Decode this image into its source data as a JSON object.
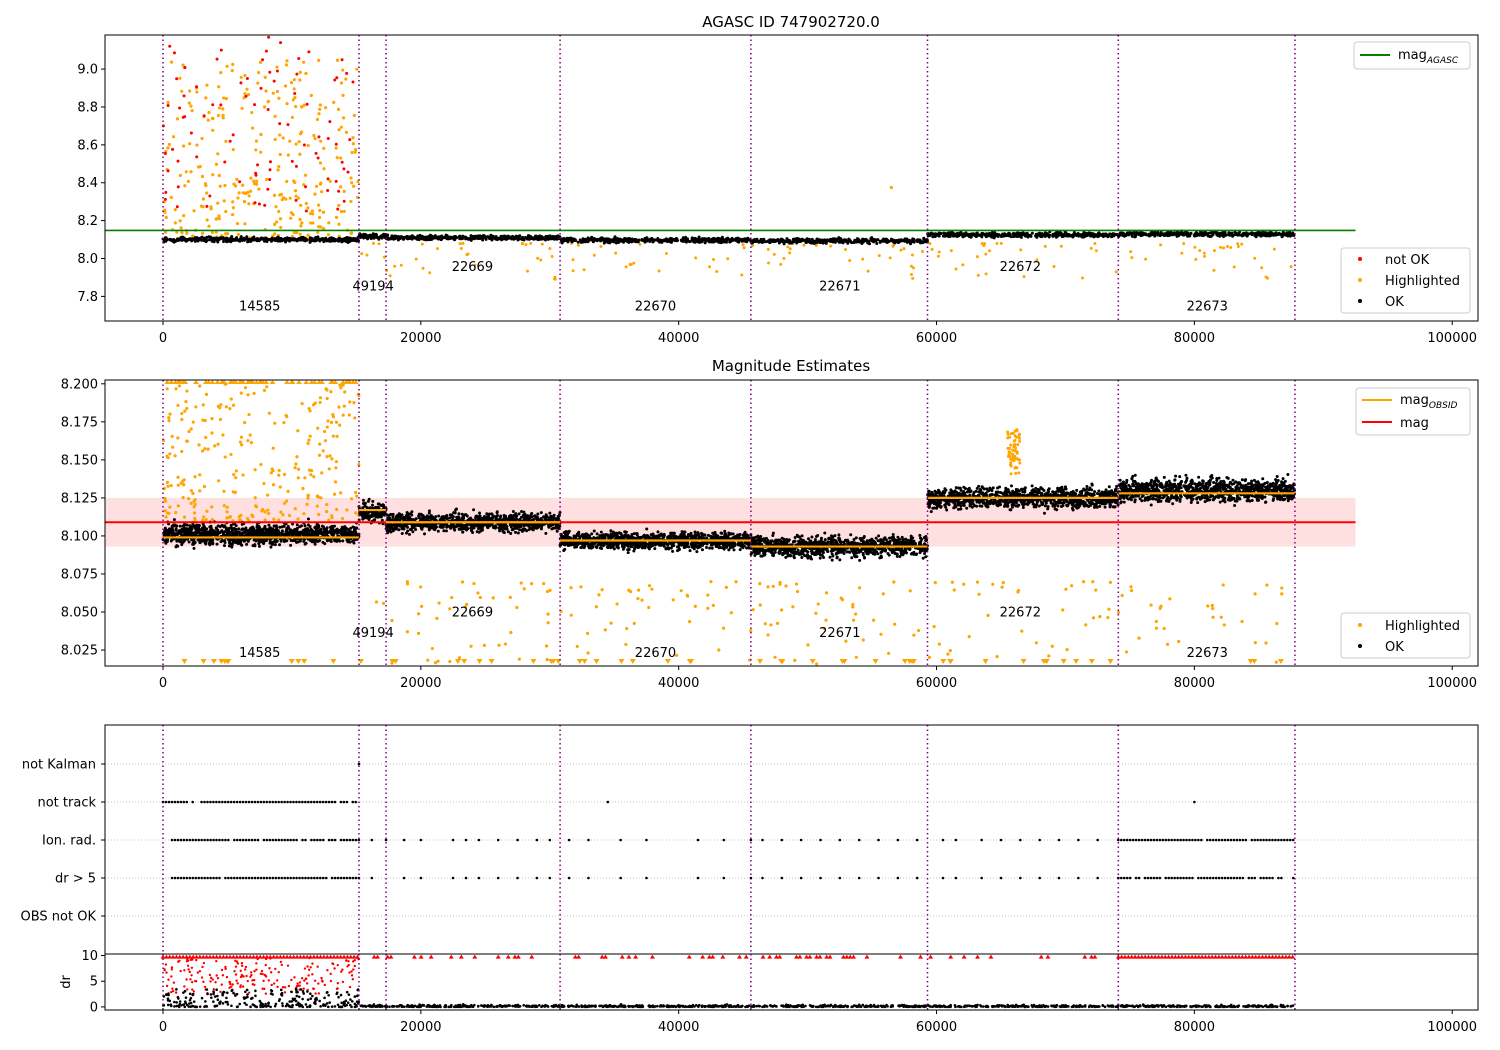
{
  "chart_data": [
    {
      "type": "scatter",
      "title": "AGASC ID 747902720.0",
      "xlabel": "",
      "ylabel": "",
      "xlim": [
        -4500,
        102000
      ],
      "ylim": [
        7.67,
        9.18
      ],
      "xticks": [
        0,
        20000,
        40000,
        60000,
        80000,
        100000
      ],
      "xtick_labels": [
        "0",
        "20000",
        "40000",
        "60000",
        "80000",
        "100000"
      ],
      "yticks": [
        7.8,
        8.0,
        8.2,
        8.4,
        8.6,
        8.8,
        9.0
      ],
      "ytick_labels": [
        "7.8",
        "8.0",
        "8.2",
        "8.4",
        "8.6",
        "8.8",
        "9.0"
      ],
      "obsid_boundaries": [
        0,
        15200,
        17300,
        30800,
        45600,
        59300,
        74100,
        87800
      ],
      "obsid_labels": [
        {
          "x": 7500,
          "y": 7.725,
          "text": "14585"
        },
        {
          "x": 16300,
          "y": 7.83,
          "text": "49194"
        },
        {
          "x": 24000,
          "y": 7.935,
          "text": "22669"
        },
        {
          "x": 38200,
          "y": 7.725,
          "text": "22670"
        },
        {
          "x": 52500,
          "y": 7.83,
          "text": "22671"
        },
        {
          "x": 66500,
          "y": 7.935,
          "text": "22672"
        },
        {
          "x": 81000,
          "y": 7.725,
          "text": "22673"
        }
      ],
      "reference_lines": [
        {
          "name": "mag_AGASC",
          "y": 8.148,
          "x_range": [
            -4500,
            92500
          ],
          "color": "#008000"
        }
      ],
      "ok_segments": [
        {
          "x": [
            0,
            15200
          ],
          "center": 8.1,
          "spread": 0.02
        },
        {
          "x": [
            15200,
            17300
          ],
          "center": 8.116,
          "spread": 0.02
        },
        {
          "x": [
            17300,
            30800
          ],
          "center": 8.11,
          "spread": 0.02
        },
        {
          "x": [
            30800,
            45600
          ],
          "center": 8.097,
          "spread": 0.02
        },
        {
          "x": [
            45600,
            59300
          ],
          "center": 8.093,
          "spread": 0.02
        },
        {
          "x": [
            59300,
            74100
          ],
          "center": 8.125,
          "spread": 0.02
        },
        {
          "x": [
            74100,
            87800
          ],
          "center": 8.128,
          "spread": 0.02
        }
      ],
      "legends": [
        {
          "position": "upper right",
          "entries": [
            {
              "label": "mag",
              "sub": "AGASC",
              "marker": "line",
              "color": "#008000"
            }
          ]
        },
        {
          "position": "lower right",
          "entries": [
            {
              "label": "not OK",
              "marker": "dot",
              "color": "#ff0000"
            },
            {
              "label": "Highlighted",
              "marker": "dot",
              "color": "#ffa500"
            },
            {
              "label": "OK",
              "marker": "dot",
              "color": "#000000"
            }
          ]
        }
      ]
    },
    {
      "type": "scatter",
      "title": "Magnitude Estimates",
      "xlabel": "",
      "ylabel": "",
      "xlim": [
        -4500,
        102000
      ],
      "ylim": [
        8.0145,
        8.2025
      ],
      "xticks": [
        0,
        20000,
        40000,
        60000,
        80000,
        100000
      ],
      "xtick_labels": [
        "0",
        "20000",
        "40000",
        "60000",
        "80000",
        "100000"
      ],
      "yticks": [
        8.025,
        8.05,
        8.075,
        8.1,
        8.125,
        8.15,
        8.175,
        8.2
      ],
      "ytick_labels": [
        "8.025",
        "8.050",
        "8.075",
        "8.100",
        "8.125",
        "8.150",
        "8.175",
        "8.200"
      ],
      "obsid_boundaries": [
        0,
        15200,
        17300,
        30800,
        45600,
        59300,
        74100,
        87800
      ],
      "obsid_labels": [
        {
          "x": 7500,
          "y": 8.0205,
          "text": "14585"
        },
        {
          "x": 16300,
          "y": 8.0335,
          "text": "49194"
        },
        {
          "x": 24000,
          "y": 8.047,
          "text": "22669"
        },
        {
          "x": 38200,
          "y": 8.0205,
          "text": "22670"
        },
        {
          "x": 52500,
          "y": 8.0335,
          "text": "22671"
        },
        {
          "x": 66500,
          "y": 8.047,
          "text": "22672"
        },
        {
          "x": 81000,
          "y": 8.0205,
          "text": "22673"
        }
      ],
      "mag": {
        "value": 8.109,
        "band": [
          8.093,
          8.125
        ],
        "x_range": [
          -4500,
          92500
        ],
        "color": "#ff0000"
      },
      "mag_obsid": [
        {
          "x": [
            0,
            15200
          ],
          "y": 8.099
        },
        {
          "x": [
            15200,
            17300
          ],
          "y": 8.117
        },
        {
          "x": [
            17300,
            30800
          ],
          "y": 8.109
        },
        {
          "x": [
            30800,
            45600
          ],
          "y": 8.097
        },
        {
          "x": [
            45600,
            59300
          ],
          "y": 8.093
        },
        {
          "x": [
            59300,
            74100
          ],
          "y": 8.125
        },
        {
          "x": [
            74100,
            87800
          ],
          "y": 8.128
        }
      ],
      "ok_segments": [
        {
          "x": [
            0,
            15200
          ],
          "center": 8.101,
          "spread": 0.012
        },
        {
          "x": [
            15200,
            17300
          ],
          "center": 8.116,
          "spread": 0.012
        },
        {
          "x": [
            17300,
            30800
          ],
          "center": 8.109,
          "spread": 0.011
        },
        {
          "x": [
            30800,
            45600
          ],
          "center": 8.097,
          "spread": 0.01
        },
        {
          "x": [
            45600,
            59300
          ],
          "center": 8.093,
          "spread": 0.012
        },
        {
          "x": [
            59300,
            74100
          ],
          "center": 8.125,
          "spread": 0.012
        },
        {
          "x": [
            74100,
            87800
          ],
          "center": 8.13,
          "spread": 0.013
        }
      ],
      "legends": [
        {
          "position": "upper right",
          "entries": [
            {
              "label": "mag",
              "sub": "OBSID",
              "marker": "line",
              "color": "#ffa500"
            },
            {
              "label": "mag",
              "marker": "line",
              "color": "#ff0000"
            }
          ]
        },
        {
          "position": "lower right",
          "entries": [
            {
              "label": "Highlighted",
              "marker": "dot",
              "color": "#ffa500"
            },
            {
              "label": "OK",
              "marker": "dot",
              "color": "#000000"
            }
          ]
        }
      ]
    },
    {
      "type": "scatter",
      "title": "",
      "xlim": [
        -4500,
        102000
      ],
      "categories": [
        "not Kalman",
        "not track",
        "Ion. rad.",
        "dr > 5",
        "OBS not OK"
      ],
      "obsid_boundaries": [
        0,
        15200,
        17300,
        30800,
        45600,
        59300,
        74100,
        87800
      ],
      "flags": [
        {
          "category": "not Kalman",
          "ranges": [
            [
              15200,
              15200
            ]
          ]
        },
        {
          "category": "not track",
          "ranges": [
            [
              0,
              15200
            ]
          ],
          "singles": [
            34500,
            80000
          ]
        },
        {
          "category": "Ion. rad.",
          "ranges": [
            [
              700,
              15200
            ],
            [
              74100,
              87800
            ]
          ],
          "singles": [
            16200,
            17300,
            18700,
            20000,
            22500,
            23500,
            24500,
            26000,
            27500,
            29000,
            30000,
            31500,
            33000,
            35500,
            37500,
            41500,
            43500,
            45600,
            46500,
            48000,
            49500,
            51000,
            52500,
            54000,
            55500,
            57000,
            58500,
            60500,
            61500,
            63500,
            65000,
            66500,
            68000,
            69500,
            71000,
            72500
          ]
        },
        {
          "category": "dr > 5",
          "ranges": [
            [
              700,
              15200
            ],
            [
              74100,
              87800
            ]
          ],
          "singles": [
            16200,
            18700,
            20000,
            22500,
            23500,
            24500,
            26000,
            27500,
            29000,
            30000,
            31500,
            33000,
            35500,
            37500,
            41500,
            43500,
            45600,
            46500,
            48000,
            49500,
            51000,
            52500,
            54000,
            55500,
            57000,
            58500,
            60500,
            61500,
            63500,
            65000,
            66500,
            68000,
            69500,
            71000,
            72500
          ]
        }
      ]
    },
    {
      "type": "scatter",
      "title": "",
      "xlabel": "",
      "ylabel": "dr",
      "xlim": [
        -4500,
        102000
      ],
      "ylim": [
        -0.6,
        10.3
      ],
      "xticks": [
        0,
        20000,
        40000,
        60000,
        80000,
        100000
      ],
      "xtick_labels": [
        "0",
        "20000",
        "40000",
        "60000",
        "80000",
        "100000"
      ],
      "yticks": [
        0,
        5,
        10
      ],
      "ytick_labels": [
        "0",
        "5",
        "10"
      ],
      "obsid_boundaries": [
        0,
        15200,
        17300,
        30800,
        45600,
        59300,
        74100,
        87800
      ]
    }
  ]
}
